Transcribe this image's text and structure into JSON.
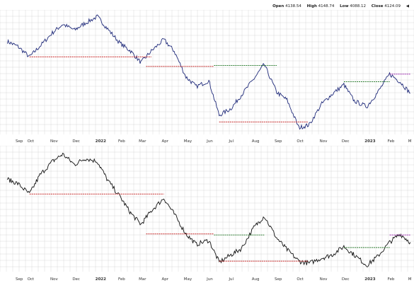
{
  "header": {
    "open_label": "Open",
    "open_value": "4138.54",
    "high_label": "High",
    "high_value": "4148.74",
    "low_label": "Low",
    "low_value": "4088.12",
    "close_label": "Close",
    "close_value": "4124.09",
    "more_indicator": "◀"
  },
  "colors": {
    "top_series": "#1f2a7a",
    "bottom_series": "#111111",
    "support_line": "#c62828",
    "resistance_line": "#2e7d32",
    "recent_high_line": "#9c27b0",
    "grid": "#d9d9d9"
  },
  "chart_data": [
    {
      "type": "line",
      "title": "",
      "x": [
        "2021-09-01",
        "2021-09-15",
        "2021-10-01",
        "2021-10-15",
        "2021-11-01",
        "2021-11-15",
        "2021-12-01",
        "2021-12-15",
        "2022-01-01",
        "2022-01-15",
        "2022-02-01",
        "2022-02-15",
        "2022-03-01",
        "2022-03-15",
        "2022-04-01",
        "2022-04-15",
        "2022-05-01",
        "2022-05-15",
        "2022-06-01",
        "2022-06-15",
        "2022-07-01",
        "2022-07-15",
        "2022-08-01",
        "2022-08-15",
        "2022-09-01",
        "2022-09-15",
        "2022-10-01",
        "2022-10-15",
        "2022-11-01",
        "2022-11-15",
        "2022-12-01",
        "2022-12-15",
        "2023-01-01",
        "2023-01-15",
        "2023-02-01",
        "2023-02-15",
        "2023-03-01"
      ],
      "series": [
        {
          "values": [
            4520,
            4470,
            4360,
            4470,
            4610,
            4700,
            4640,
            4710,
            4780,
            4650,
            4500,
            4420,
            4300,
            4420,
            4540,
            4420,
            4150,
            4050,
            4110,
            3750,
            3820,
            3960,
            4130,
            4280,
            3990,
            3910,
            3620,
            3650,
            3870,
            3970,
            4070,
            3900,
            3840,
            3980,
            4180,
            4100,
            3980
          ]
        }
      ],
      "x_ticks": [
        "Sep",
        "Oct",
        "Nov",
        "Dec",
        "2022",
        "Feb",
        "Mar",
        "Apr",
        "May",
        "Jun",
        "Jul",
        "Aug",
        "Sep",
        "Oct",
        "Nov",
        "Dec",
        "2023",
        "Feb",
        "M"
      ],
      "bold_ticks": [
        "2022",
        "2023"
      ],
      "levels": [
        {
          "kind": "support",
          "y": 4360,
          "x_from": "2021-10-01",
          "x_to": "2022-03-15"
        },
        {
          "kind": "support",
          "y": 4260,
          "x_from": "2022-03-08",
          "x_to": "2022-06-08"
        },
        {
          "kind": "resistance",
          "y": 4270,
          "x_from": "2022-06-08",
          "x_to": "2022-09-01"
        },
        {
          "kind": "support",
          "y": 3680,
          "x_from": "2022-06-15",
          "x_to": "2022-10-13"
        },
        {
          "kind": "resistance",
          "y": 4100,
          "x_from": "2022-12-01",
          "x_to": "2023-02-01"
        },
        {
          "kind": "recent_high",
          "y": 4180,
          "x_from": "2023-02-01",
          "x_to": "2023-03-01"
        }
      ],
      "ylim": [
        3550,
        4850
      ],
      "grid": true
    },
    {
      "type": "line",
      "title": "",
      "x": [
        "2021-09-01",
        "2021-09-15",
        "2021-10-01",
        "2021-10-15",
        "2021-11-01",
        "2021-11-15",
        "2021-12-01",
        "2021-12-15",
        "2022-01-01",
        "2022-01-15",
        "2022-02-01",
        "2022-02-15",
        "2022-03-01",
        "2022-03-15",
        "2022-04-01",
        "2022-04-15",
        "2022-05-01",
        "2022-05-15",
        "2022-06-01",
        "2022-06-15",
        "2022-07-01",
        "2022-07-15",
        "2022-08-01",
        "2022-08-15",
        "2022-09-01",
        "2022-09-15",
        "2022-10-01",
        "2022-10-15",
        "2022-11-01",
        "2022-11-15",
        "2022-12-01",
        "2022-12-15",
        "2023-01-01",
        "2023-01-15",
        "2023-02-01",
        "2023-02-15",
        "2023-03-01"
      ],
      "series": [
        {
          "values": [
            4480,
            4440,
            4340,
            4520,
            4650,
            4720,
            4620,
            4680,
            4650,
            4470,
            4310,
            4160,
            4050,
            4180,
            4300,
            4150,
            3960,
            3860,
            3900,
            3690,
            3760,
            3820,
            4020,
            4130,
            3920,
            3810,
            3700,
            3680,
            3730,
            3760,
            3840,
            3760,
            3660,
            3740,
            3880,
            3960,
            3880
          ]
        }
      ],
      "x_ticks": [
        "Sep",
        "Oct",
        "Nov",
        "Dec",
        "2022",
        "Feb",
        "Mar",
        "Apr",
        "May",
        "Jun",
        "Jul",
        "Aug",
        "Sep",
        "Oct",
        "Nov",
        "Dec",
        "2023",
        "Feb",
        "M"
      ],
      "bold_ticks": [
        "2022",
        "2023"
      ],
      "levels": [
        {
          "kind": "support",
          "y": 4340,
          "x_from": "2021-10-01",
          "x_to": "2022-04-01"
        },
        {
          "kind": "support",
          "y": 3960,
          "x_from": "2022-03-08",
          "x_to": "2022-06-08"
        },
        {
          "kind": "resistance",
          "y": 3950,
          "x_from": "2022-06-08",
          "x_to": "2022-08-15"
        },
        {
          "kind": "support",
          "y": 3700,
          "x_from": "2022-06-15",
          "x_to": "2022-10-13"
        },
        {
          "kind": "resistance",
          "y": 3830,
          "x_from": "2022-12-01",
          "x_to": "2023-02-01"
        },
        {
          "kind": "recent_high",
          "y": 3950,
          "x_from": "2023-02-01",
          "x_to": "2023-03-01"
        }
      ],
      "ylim": [
        3600,
        4800
      ],
      "grid": true
    }
  ]
}
